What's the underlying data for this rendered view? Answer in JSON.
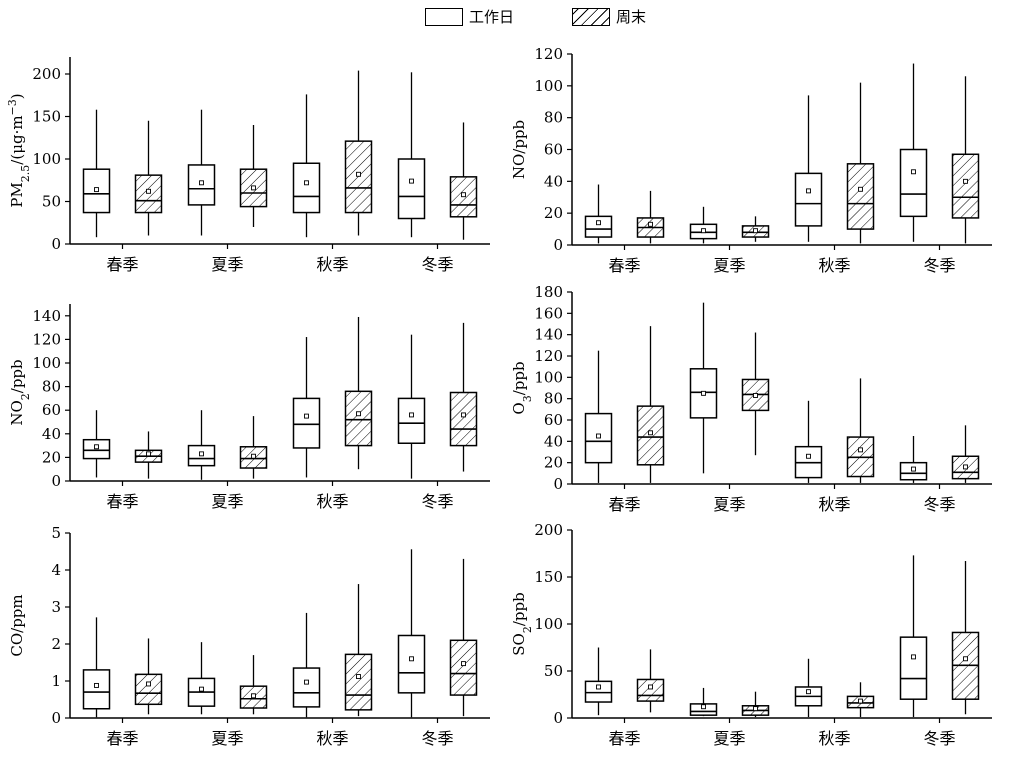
{
  "legend": {
    "weekday": "工作日",
    "weekend": "周末"
  },
  "colors": {
    "line": "#000000",
    "background": "#ffffff"
  },
  "chart_data": [
    {
      "type": "boxplot",
      "ylabel": "PM2.5/(μg·m⁻³)",
      "ylabel_parts": [
        "PM",
        "2.5",
        "/(μg·m",
        "−3",
        ")"
      ],
      "ylim": [
        0,
        220
      ],
      "yticks": [
        0,
        50,
        100,
        150,
        200
      ],
      "categories": [
        "春季",
        "夏季",
        "秋季",
        "冬季"
      ],
      "series": [
        {
          "name": "工作日",
          "boxes": [
            {
              "min": 8,
              "q1": 37,
              "median": 59,
              "q3": 88,
              "max": 158,
              "mean": 64
            },
            {
              "min": 10,
              "q1": 46,
              "median": 65,
              "q3": 93,
              "max": 158,
              "mean": 72
            },
            {
              "min": 8,
              "q1": 37,
              "median": 56,
              "q3": 95,
              "max": 176,
              "mean": 72
            },
            {
              "min": 8,
              "q1": 30,
              "median": 56,
              "q3": 100,
              "max": 202,
              "mean": 74
            }
          ]
        },
        {
          "name": "周末",
          "boxes": [
            {
              "min": 10,
              "q1": 37,
              "median": 51,
              "q3": 81,
              "max": 145,
              "mean": 62
            },
            {
              "min": 20,
              "q1": 44,
              "median": 60,
              "q3": 88,
              "max": 140,
              "mean": 66
            },
            {
              "min": 10,
              "q1": 37,
              "median": 66,
              "q3": 121,
              "max": 204,
              "mean": 82
            },
            {
              "min": 5,
              "q1": 32,
              "median": 46,
              "q3": 79,
              "max": 143,
              "mean": 58
            }
          ]
        }
      ]
    },
    {
      "type": "boxplot",
      "ylabel": "NO/ppb",
      "ylabel_parts": [
        "NO/ppb"
      ],
      "ylim": [
        0,
        120
      ],
      "yticks": [
        0,
        20,
        40,
        60,
        80,
        100,
        120
      ],
      "categories": [
        "春季",
        "夏季",
        "秋季",
        "冬季"
      ],
      "series": [
        {
          "name": "工作日",
          "boxes": [
            {
              "min": 1,
              "q1": 5,
              "median": 10,
              "q3": 18,
              "max": 38,
              "mean": 14
            },
            {
              "min": 1,
              "q1": 4,
              "median": 8,
              "q3": 13,
              "max": 24,
              "mean": 9
            },
            {
              "min": 2,
              "q1": 12,
              "median": 26,
              "q3": 45,
              "max": 94,
              "mean": 34
            },
            {
              "min": 2,
              "q1": 18,
              "median": 32,
              "q3": 60,
              "max": 114,
              "mean": 46
            }
          ]
        },
        {
          "name": "周末",
          "boxes": [
            {
              "min": 1,
              "q1": 5,
              "median": 11,
              "q3": 17,
              "max": 34,
              "mean": 13
            },
            {
              "min": 2,
              "q1": 5,
              "median": 8,
              "q3": 12,
              "max": 18,
              "mean": 9
            },
            {
              "min": 1,
              "q1": 10,
              "median": 26,
              "q3": 51,
              "max": 102,
              "mean": 35
            },
            {
              "min": 1,
              "q1": 17,
              "median": 30,
              "q3": 57,
              "max": 106,
              "mean": 40
            }
          ]
        }
      ]
    },
    {
      "type": "boxplot",
      "ylabel": "NO2/ppb",
      "ylabel_parts": [
        "NO",
        "2",
        "/ppb"
      ],
      "ylim": [
        0,
        150
      ],
      "yticks": [
        0,
        20,
        40,
        60,
        80,
        100,
        120,
        140
      ],
      "categories": [
        "春季",
        "夏季",
        "秋季",
        "冬季"
      ],
      "series": [
        {
          "name": "工作日",
          "boxes": [
            {
              "min": 3,
              "q1": 19,
              "median": 26,
              "q3": 35,
              "max": 60,
              "mean": 29
            },
            {
              "min": 1,
              "q1": 13,
              "median": 19,
              "q3": 30,
              "max": 60,
              "mean": 23
            },
            {
              "min": 3,
              "q1": 28,
              "median": 48,
              "q3": 70,
              "max": 122,
              "mean": 55
            },
            {
              "min": 2,
              "q1": 32,
              "median": 49,
              "q3": 70,
              "max": 124,
              "mean": 56
            }
          ]
        },
        {
          "name": "周末",
          "boxes": [
            {
              "min": 2,
              "q1": 16,
              "median": 21,
              "q3": 26,
              "max": 42,
              "mean": 23
            },
            {
              "min": 2,
              "q1": 11,
              "median": 19,
              "q3": 29,
              "max": 55,
              "mean": 21
            },
            {
              "min": 10,
              "q1": 30,
              "median": 52,
              "q3": 76,
              "max": 139,
              "mean": 57
            },
            {
              "min": 8,
              "q1": 30,
              "median": 44,
              "q3": 75,
              "max": 134,
              "mean": 56
            }
          ]
        }
      ]
    },
    {
      "type": "boxplot",
      "ylabel": "O3/ppb",
      "ylabel_parts": [
        "O",
        "3",
        "/ppb"
      ],
      "ylim": [
        0,
        180
      ],
      "yticks": [
        0,
        20,
        40,
        60,
        80,
        100,
        120,
        140,
        160,
        180
      ],
      "categories": [
        "春季",
        "夏季",
        "秋季",
        "冬季"
      ],
      "series": [
        {
          "name": "工作日",
          "boxes": [
            {
              "min": 1,
              "q1": 20,
              "median": 40,
              "q3": 66,
              "max": 125,
              "mean": 45
            },
            {
              "min": 10,
              "q1": 62,
              "median": 86,
              "q3": 108,
              "max": 170,
              "mean": 85
            },
            {
              "min": 1,
              "q1": 6,
              "median": 20,
              "q3": 35,
              "max": 78,
              "mean": 26
            },
            {
              "min": 1,
              "q1": 4,
              "median": 10,
              "q3": 20,
              "max": 45,
              "mean": 14
            }
          ]
        },
        {
          "name": "周末",
          "boxes": [
            {
              "min": 1,
              "q1": 18,
              "median": 44,
              "q3": 73,
              "max": 148,
              "mean": 48
            },
            {
              "min": 27,
              "q1": 69,
              "median": 84,
              "q3": 98,
              "max": 142,
              "mean": 83
            },
            {
              "min": 1,
              "q1": 7,
              "median": 25,
              "q3": 44,
              "max": 99,
              "mean": 32
            },
            {
              "min": 1,
              "q1": 5,
              "median": 11,
              "q3": 26,
              "max": 55,
              "mean": 16
            }
          ]
        }
      ]
    },
    {
      "type": "boxplot",
      "ylabel": "CO/ppm",
      "ylabel_parts": [
        "CO/ppm"
      ],
      "ylim": [
        0,
        5
      ],
      "yticks": [
        0,
        1,
        2,
        3,
        4,
        5
      ],
      "categories": [
        "春季",
        "夏季",
        "秋季",
        "冬季"
      ],
      "series": [
        {
          "name": "工作日",
          "boxes": [
            {
              "min": 0.02,
              "q1": 0.25,
              "median": 0.7,
              "q3": 1.3,
              "max": 2.72,
              "mean": 0.88
            },
            {
              "min": 0.1,
              "q1": 0.32,
              "median": 0.7,
              "q3": 1.07,
              "max": 2.05,
              "mean": 0.78
            },
            {
              "min": 0.02,
              "q1": 0.3,
              "median": 0.68,
              "q3": 1.35,
              "max": 2.84,
              "mean": 0.97
            },
            {
              "min": 0.02,
              "q1": 0.68,
              "median": 1.22,
              "q3": 2.23,
              "max": 4.56,
              "mean": 1.6
            }
          ]
        },
        {
          "name": "周末",
          "boxes": [
            {
              "min": 0.1,
              "q1": 0.37,
              "median": 0.67,
              "q3": 1.18,
              "max": 2.15,
              "mean": 0.92
            },
            {
              "min": 0.1,
              "q1": 0.27,
              "median": 0.52,
              "q3": 0.86,
              "max": 1.7,
              "mean": 0.6
            },
            {
              "min": 0.05,
              "q1": 0.22,
              "median": 0.62,
              "q3": 1.72,
              "max": 3.62,
              "mean": 1.12
            },
            {
              "min": 0.05,
              "q1": 0.62,
              "median": 1.2,
              "q3": 2.1,
              "max": 4.3,
              "mean": 1.47
            }
          ]
        }
      ]
    },
    {
      "type": "boxplot",
      "ylabel": "SO2/ppb",
      "ylabel_parts": [
        "SO",
        "2",
        "/ppb"
      ],
      "ylim": [
        0,
        200
      ],
      "yticks": [
        0,
        50,
        100,
        150,
        200
      ],
      "categories": [
        "春季",
        "夏季",
        "秋季",
        "冬季"
      ],
      "series": [
        {
          "name": "工作日",
          "boxes": [
            {
              "min": 3,
              "q1": 17,
              "median": 27,
              "q3": 39,
              "max": 75,
              "mean": 33
            },
            {
              "min": 2,
              "q1": 3,
              "median": 7,
              "q3": 15,
              "max": 32,
              "mean": 12
            },
            {
              "min": 1,
              "q1": 13,
              "median": 23,
              "q3": 33,
              "max": 63,
              "mean": 28
            },
            {
              "min": 1,
              "q1": 20,
              "median": 42,
              "q3": 86,
              "max": 173,
              "mean": 65
            }
          ]
        },
        {
          "name": "周末",
          "boxes": [
            {
              "min": 6,
              "q1": 18,
              "median": 24,
              "q3": 41,
              "max": 73,
              "mean": 33
            },
            {
              "min": 1,
              "q1": 3,
              "median": 8,
              "q3": 13,
              "max": 28,
              "mean": 10
            },
            {
              "min": 1,
              "q1": 11,
              "median": 16,
              "q3": 23,
              "max": 38,
              "mean": 18
            },
            {
              "min": 4,
              "q1": 20,
              "median": 56,
              "q3": 91,
              "max": 167,
              "mean": 63
            }
          ]
        }
      ]
    }
  ]
}
